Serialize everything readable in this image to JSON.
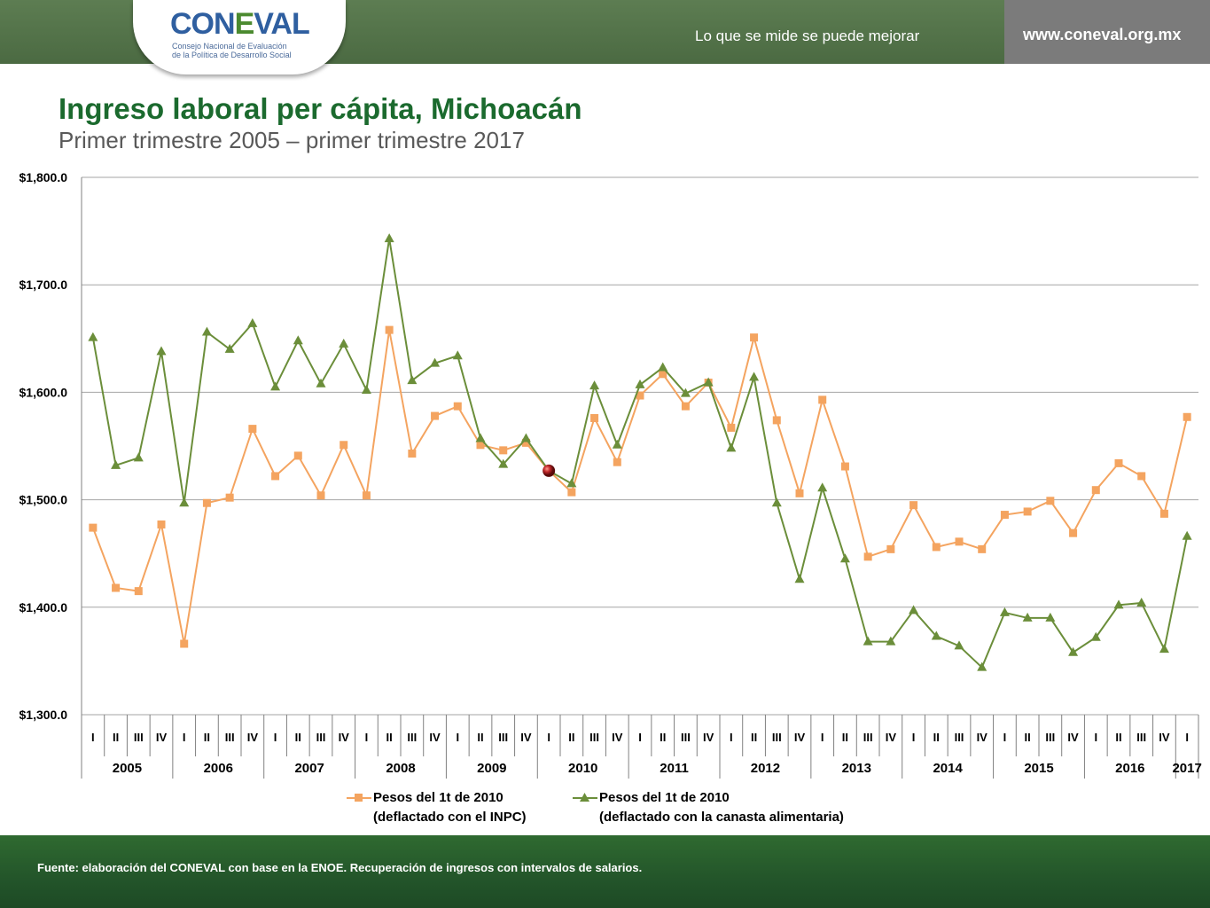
{
  "header": {
    "logo_text_a": "CON",
    "logo_text_b": "E",
    "logo_text_c": "VAL",
    "logo_subtitle_1": "Consejo Nacional de Evaluación",
    "logo_subtitle_2": "de la Política de Desarrollo Social",
    "slogan": "Lo que se mide se puede mejorar",
    "url": "www.coneval.org.mx"
  },
  "title": "Ingreso laboral per cápita, Michoacán",
  "subtitle": "Primer trimestre 2005 – primer trimestre 2017",
  "footer": "Fuente: elaboración del CONEVAL con base en la ENOE. Recuperación de ingresos con intervalos de salarios.",
  "chart_data": {
    "type": "line",
    "ylim": [
      1300,
      1800
    ],
    "yticks": [
      "$1,300.0",
      "$1,400.0",
      "$1,500.0",
      "$1,600.0",
      "$1,700.0",
      "$1,800.0"
    ],
    "ytick_values": [
      1300,
      1400,
      1500,
      1600,
      1700,
      1800
    ],
    "grid": true,
    "legend_position": "bottom",
    "quarters": [
      "I",
      "II",
      "III",
      "IV",
      "I",
      "II",
      "III",
      "IV",
      "I",
      "II",
      "III",
      "IV",
      "I",
      "II",
      "III",
      "IV",
      "I",
      "II",
      "III",
      "IV",
      "I",
      "II",
      "III",
      "IV",
      "I",
      "II",
      "III",
      "IV",
      "I",
      "II",
      "III",
      "IV",
      "I",
      "II",
      "III",
      "IV",
      "I",
      "II",
      "III",
      "IV",
      "I",
      "II",
      "III",
      "IV",
      "I",
      "II",
      "III",
      "IV",
      "I"
    ],
    "years": [
      "2005",
      "2006",
      "2007",
      "2008",
      "2009",
      "2010",
      "2011",
      "2012",
      "2013",
      "2014",
      "2015",
      "2016",
      "2017"
    ],
    "series": [
      {
        "name_line1": "Pesos del 1t de 2010",
        "name_line2": "(deflactado con el INPC)",
        "color": "#f4a460",
        "marker": "square",
        "values": [
          1474,
          1418,
          1415,
          1477,
          1366,
          1497,
          1502,
          1566,
          1522,
          1541,
          1504,
          1551,
          1504,
          1658,
          1543,
          1578,
          1587,
          1551,
          1546,
          1553,
          1527,
          1507,
          1576,
          1535,
          1597,
          1617,
          1587,
          1609,
          1567,
          1651,
          1574,
          1506,
          1593,
          1531,
          1447,
          1454,
          1495,
          1456,
          1461,
          1454,
          1486,
          1489,
          1499,
          1469,
          1509,
          1534,
          1522,
          1487,
          1577
        ]
      },
      {
        "name_line1": "Pesos del 1t de 2010",
        "name_line2": "(deflactado con la canasta alimentaria)",
        "color": "#6b8e3a",
        "marker": "triangle",
        "values": [
          1651,
          1532,
          1539,
          1638,
          1497,
          1656,
          1640,
          1664,
          1605,
          1648,
          1608,
          1645,
          1602,
          1743,
          1611,
          1627,
          1634,
          1557,
          1533,
          1557,
          1527,
          1515,
          1606,
          1551,
          1607,
          1623,
          1599,
          1609,
          1548,
          1614,
          1497,
          1426,
          1511,
          1445,
          1368,
          1368,
          1397,
          1373,
          1364,
          1344,
          1395,
          1390,
          1390,
          1358,
          1372,
          1402,
          1404,
          1361,
          1466
        ]
      }
    ]
  }
}
